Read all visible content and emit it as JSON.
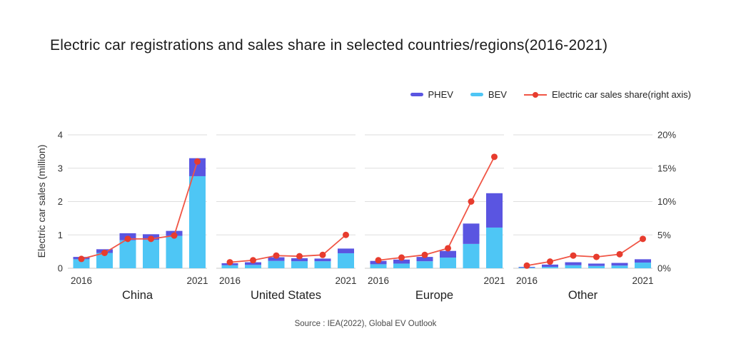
{
  "title": "Electric car registrations and sales share in selected countries/regions(2016-2021)",
  "source": "Source : IEA(2022), Global EV Outlook",
  "colors": {
    "phev": "#5a55e1",
    "bev": "#4ec6f5",
    "line": "#f05545",
    "dot": "#e73c2e",
    "grid": "#dedede",
    "axis_line": "#c9c9c9",
    "tick_text": "#333333",
    "panel_text": "#222222",
    "title_text": "#1b1b1b"
  },
  "legend": {
    "items": [
      {
        "label": "PHEV",
        "kind": "bar",
        "color": "#5a55e1"
      },
      {
        "label": "BEV",
        "kind": "bar",
        "color": "#4ec6f5"
      },
      {
        "label": "Electric car sales share(right axis)",
        "kind": "line",
        "color": "#f05545",
        "dot_color": "#e73c2e"
      }
    ]
  },
  "chart_data": {
    "type": "combo-stacked-bar-line",
    "title": "Electric car registrations and sales share in selected countries/regions(2016-2021)",
    "years": [
      2016,
      2017,
      2018,
      2019,
      2020,
      2021
    ],
    "x_tick_labels": [
      "2016",
      "",
      "",
      "",
      "",
      "2021"
    ],
    "left_axis": {
      "title": "Electric car sales (million)",
      "ticks": [
        "4",
        "3",
        "2",
        "1",
        "0"
      ],
      "min": 0,
      "max": 4
    },
    "right_axis": {
      "ticks": [
        "20%",
        "15%",
        "10%",
        "5%",
        "0%"
      ],
      "min": 0,
      "max": 20
    },
    "grid": true,
    "legend_position": "top-right",
    "series_meta": {
      "bev_label": "BEV",
      "phev_label": "PHEV",
      "line_label": "Electric car sales share(right axis)",
      "bar_unit": "million",
      "line_unit": "%"
    },
    "panels": [
      {
        "name": "China",
        "bev": [
          0.27,
          0.46,
          0.84,
          0.85,
          0.97,
          2.76
        ],
        "phev": [
          0.07,
          0.11,
          0.21,
          0.17,
          0.15,
          0.54
        ],
        "share_pct": [
          1.4,
          2.3,
          4.4,
          4.4,
          4.9,
          16.0
        ]
      },
      {
        "name": "United States",
        "bev": [
          0.09,
          0.1,
          0.22,
          0.21,
          0.21,
          0.45
        ],
        "phev": [
          0.06,
          0.08,
          0.11,
          0.09,
          0.08,
          0.14
        ],
        "share_pct": [
          0.9,
          1.2,
          1.9,
          1.8,
          2.0,
          5.0
        ]
      },
      {
        "name": "Europe",
        "bev": [
          0.12,
          0.14,
          0.21,
          0.32,
          0.73,
          1.22
        ],
        "phev": [
          0.1,
          0.12,
          0.13,
          0.2,
          0.61,
          1.03
        ],
        "share_pct": [
          1.2,
          1.6,
          2.0,
          3.0,
          10.0,
          16.7
        ]
      },
      {
        "name": "Other",
        "bev": [
          0.02,
          0.04,
          0.09,
          0.07,
          0.08,
          0.17
        ],
        "phev": [
          0.02,
          0.07,
          0.09,
          0.07,
          0.08,
          0.1
        ],
        "share_pct": [
          0.4,
          1.0,
          1.9,
          1.7,
          2.1,
          4.4
        ]
      }
    ]
  }
}
